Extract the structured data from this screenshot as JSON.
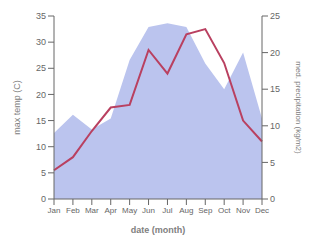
{
  "chart_data": {
    "type": "line",
    "xlabel": "date (month)",
    "ylabel": "max temp (C)",
    "y2label": "med. precipitation (kg/m2)",
    "categories": [
      "Jan",
      "Feb",
      "Mar",
      "Apr",
      "May",
      "Jun",
      "Jul",
      "Aug",
      "Sep",
      "Oct",
      "Nov",
      "Dec"
    ],
    "series": [
      {
        "type": "area",
        "axis": "y2",
        "color": "#bbc4ee",
        "values": [
          9.0,
          11.5,
          9.5,
          11.0,
          19.0,
          23.5,
          24.0,
          23.5,
          18.5,
          15.0,
          20.0,
          11.0
        ]
      },
      {
        "type": "line",
        "axis": "y",
        "color": "#b94060",
        "values": [
          5.5,
          8.0,
          13.0,
          17.5,
          18.0,
          28.5,
          24.0,
          31.5,
          32.5,
          26.0,
          15.0,
          11.0
        ]
      }
    ],
    "ylim": [
      0,
      35
    ],
    "yticks": [
      0,
      5,
      10,
      15,
      20,
      25,
      30,
      35
    ],
    "y2lim": [
      0,
      25
    ],
    "y2ticks": [
      0,
      5,
      10,
      15,
      20,
      25
    ],
    "grid": false
  }
}
